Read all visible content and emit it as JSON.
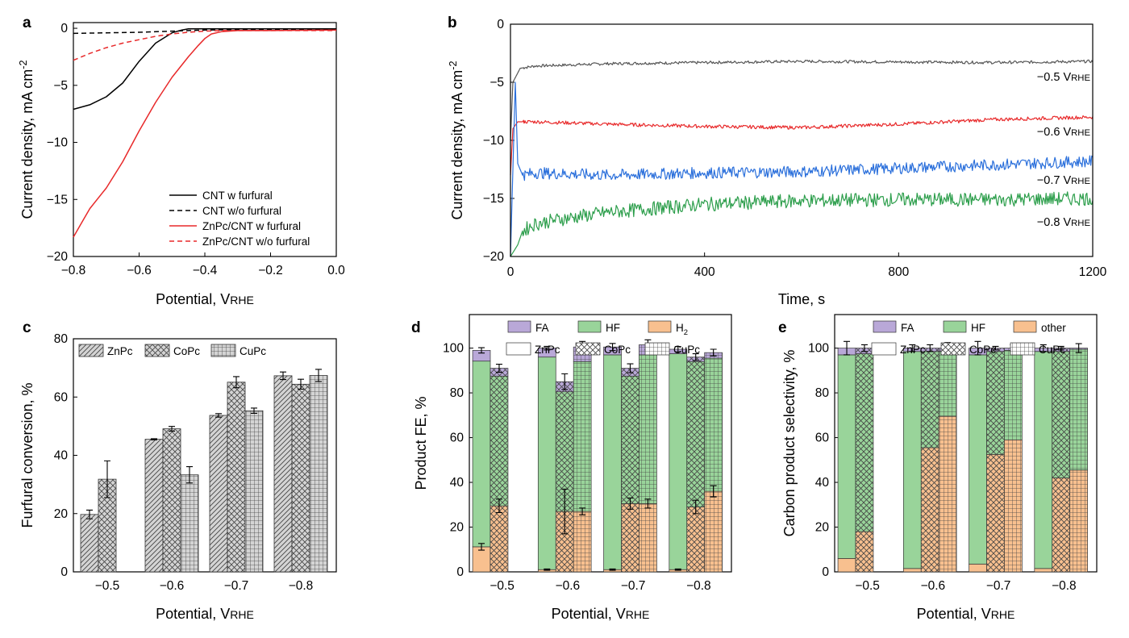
{
  "colors": {
    "black": "#000000",
    "red": "#e8292a",
    "blue": "#2a6fdb",
    "green": "#2c9e4b",
    "gray": "#555555",
    "FA": "#b9a8d8",
    "HF": "#99d49a",
    "H2": "#f8c08f",
    "bar_gray": "#d0d0d0"
  },
  "chart_data": [
    {
      "panel": "a",
      "type": "line",
      "xlabel": "Potential, VRHE",
      "ylabel": "Current density, mA cm-2",
      "xlim": [
        -0.8,
        0.0
      ],
      "ylim": [
        -20,
        0.5
      ],
      "xticks": [
        "-0.8",
        "-0.6",
        "-0.4",
        "-0.2",
        "0.0"
      ],
      "yticks": [
        "0",
        "-5",
        "-10",
        "-15",
        "-20"
      ],
      "legend_position": "bottom-right",
      "series": [
        {
          "name": "CNT w furfural",
          "color": "#000000",
          "dash": "solid",
          "x": [
            -0.8,
            -0.75,
            -0.7,
            -0.65,
            -0.6,
            -0.55,
            -0.5,
            -0.47,
            -0.45,
            -0.4,
            -0.3,
            -0.2,
            0.0
          ],
          "y": [
            -7.1,
            -6.7,
            -6.0,
            -4.8,
            -2.9,
            -1.3,
            -0.4,
            -0.15,
            -0.05,
            -0.05,
            -0.05,
            -0.05,
            -0.05
          ]
        },
        {
          "name": "CNT w/o furfural",
          "color": "#000000",
          "dash": "dashed",
          "x": [
            -0.8,
            -0.6,
            -0.5,
            -0.4,
            -0.2,
            0.0
          ],
          "y": [
            -0.45,
            -0.35,
            -0.25,
            -0.15,
            -0.1,
            -0.1
          ]
        },
        {
          "name": "ZnPc/CNT w furfural",
          "color": "#e8292a",
          "dash": "solid",
          "x": [
            -0.8,
            -0.77,
            -0.75,
            -0.7,
            -0.65,
            -0.6,
            -0.55,
            -0.5,
            -0.45,
            -0.42,
            -0.4,
            -0.38,
            -0.35,
            -0.3,
            -0.2,
            0.0
          ],
          "y": [
            -18.3,
            -16.8,
            -15.8,
            -14.0,
            -11.7,
            -9.0,
            -6.5,
            -4.3,
            -2.5,
            -1.5,
            -0.9,
            -0.5,
            -0.3,
            -0.2,
            -0.2,
            -0.15
          ]
        },
        {
          "name": "ZnPc/CNT w/o furfural",
          "color": "#e8292a",
          "dash": "dashed",
          "x": [
            -0.8,
            -0.75,
            -0.7,
            -0.65,
            -0.6,
            -0.55,
            -0.5,
            -0.45,
            -0.4,
            -0.35,
            -0.3,
            -0.2,
            0.0
          ],
          "y": [
            -2.8,
            -2.2,
            -1.7,
            -1.3,
            -1.0,
            -0.7,
            -0.5,
            -0.35,
            -0.25,
            -0.2,
            -0.2,
            -0.2,
            -0.2
          ]
        }
      ]
    },
    {
      "panel": "b",
      "type": "line",
      "xlabel": "Time, s",
      "ylabel": "Current density, mA cm-2",
      "xlim": [
        0,
        1200
      ],
      "ylim": [
        -20,
        0
      ],
      "xticks": [
        "0",
        "400",
        "800",
        "1200"
      ],
      "yticks": [
        "0",
        "-5",
        "-10",
        "-15",
        "-20"
      ],
      "series": [
        {
          "name": "-0.5 VRHE",
          "color": "#555555",
          "noise": 0.12,
          "x": [
            0,
            5,
            20,
            50,
            200,
            400,
            600,
            800,
            1000,
            1200
          ],
          "y": [
            -10,
            -5,
            -3.8,
            -3.6,
            -3.4,
            -3.3,
            -3.2,
            -3.25,
            -3.3,
            -3.2
          ]
        },
        {
          "name": "-0.6 VRHE",
          "color": "#e8292a",
          "noise": 0.15,
          "x": [
            0,
            5,
            15,
            50,
            200,
            400,
            600,
            800,
            1000,
            1200
          ],
          "y": [
            -13,
            -9,
            -8.4,
            -8.4,
            -8.6,
            -8.8,
            -8.9,
            -8.6,
            -8.2,
            -8.0
          ]
        },
        {
          "name": "-0.7 VRHE",
          "color": "#2a6fdb",
          "noise": 0.5,
          "x": [
            0,
            10,
            15,
            25,
            50,
            200,
            400,
            600,
            800,
            1000,
            1200
          ],
          "y": [
            -20,
            -5,
            -12,
            -13,
            -12.8,
            -13.0,
            -12.8,
            -12.7,
            -12.4,
            -12.1,
            -11.8
          ]
        },
        {
          "name": "-0.8 VRHE",
          "color": "#2c9e4b",
          "noise": 0.6,
          "x": [
            0,
            15,
            25,
            50,
            100,
            200,
            400,
            600,
            800,
            1000,
            1200
          ],
          "y": [
            -20,
            -19,
            -17.8,
            -17.2,
            -16.8,
            -16.2,
            -15.5,
            -15.2,
            -15.1,
            -15.1,
            -15.0
          ]
        }
      ]
    },
    {
      "panel": "c",
      "type": "bar",
      "xlabel": "Potential, VRHE",
      "ylabel": "Furfural conversion, %",
      "ylim": [
        0,
        80
      ],
      "categories": [
        "-0.5",
        "-0.6",
        "-0.7",
        "-0.8"
      ],
      "yticks": [
        "0",
        "20",
        "40",
        "60",
        "80"
      ],
      "series": [
        {
          "name": "ZnPc",
          "values": [
            19.7,
            45.5,
            53.7,
            67.3
          ],
          "errors": [
            1.5,
            0.2,
            0.6,
            1.3
          ]
        },
        {
          "name": "CoPc",
          "values": [
            31.8,
            49.1,
            65.1,
            64.4
          ],
          "errors": [
            6.3,
            0.8,
            1.9,
            1.7
          ]
        },
        {
          "name": "CuPc",
          "values": [
            null,
            33.3,
            55.3,
            67.4
          ],
          "errors": [
            null,
            2.8,
            0.9,
            2.1
          ]
        }
      ]
    },
    {
      "panel": "d",
      "type": "bar",
      "stacked": true,
      "xlabel": "Potential, VRHE",
      "ylabel": "Product FE, %",
      "ylim": [
        0,
        115
      ],
      "categories": [
        "-0.5",
        "-0.6",
        "-0.7",
        "-0.8"
      ],
      "yticks": [
        "0",
        "20",
        "40",
        "60",
        "80",
        "100"
      ],
      "components": [
        "H2",
        "HF",
        "FA"
      ],
      "component_labels": [
        "H",
        "HF",
        "FA"
      ],
      "catalysts": [
        "ZnPc",
        "CoPc",
        "CuPc"
      ],
      "stacks": [
        [
          {
            "H2": 11.2,
            "HF": 83.0,
            "FA": 4.8,
            "eH2": 1.5,
            "eTot": 1.2
          },
          {
            "H2": 29.5,
            "HF": 58.0,
            "FA": 3.5,
            "eH2": 3.0,
            "eTot": 1.8
          },
          null
        ],
        [
          {
            "H2": 1.0,
            "HF": 95.0,
            "FA": 4.0,
            "eH2": 0.3,
            "eTot": 0.8
          },
          {
            "H2": 27.0,
            "HF": 53.5,
            "FA": 4.5,
            "eH2": 10.0,
            "eTot": 3.5
          },
          {
            "H2": 27.0,
            "HF": 67.0,
            "FA": 6.5,
            "eH2": 1.5,
            "eTot": 2.5
          }
        ],
        [
          {
            "H2": 1.0,
            "HF": 96.0,
            "FA": 3.5,
            "eH2": 0.3,
            "eTot": 1.6
          },
          {
            "H2": 30.5,
            "HF": 57.0,
            "FA": 3.5,
            "eH2": 2.5,
            "eTot": 2.0
          },
          {
            "H2": 30.5,
            "HF": 66.5,
            "FA": 4.5,
            "eH2": 2.0,
            "eTot": 2.2
          }
        ],
        [
          {
            "H2": 1.0,
            "HF": 96.5,
            "FA": 2.0,
            "eH2": 0.3,
            "eTot": 1.2
          },
          {
            "H2": 29.0,
            "HF": 65.0,
            "FA": 2.0,
            "eH2": 3.0,
            "eTot": 1.5
          },
          {
            "H2": 36.0,
            "HF": 59.5,
            "FA": 2.5,
            "eH2": 2.5,
            "eTot": 1.5
          }
        ]
      ]
    },
    {
      "panel": "e",
      "type": "bar",
      "stacked": true,
      "xlabel": "Potential, VRHE",
      "ylabel": "Carbon product selectivity, %",
      "ylim": [
        0,
        115
      ],
      "categories": [
        "-0.5",
        "-0.6",
        "-0.7",
        "-0.8"
      ],
      "yticks": [
        "0",
        "20",
        "40",
        "60",
        "80",
        "100"
      ],
      "components": [
        "H2",
        "HF",
        "FA"
      ],
      "component_labels": [
        "other",
        "HF",
        "FA"
      ],
      "catalysts": [
        "ZnPc",
        "CoPc",
        "CuPc"
      ],
      "stacks": [
        [
          {
            "H2": 6.0,
            "HF": 91.0,
            "FA": 3.0,
            "eH2": 0,
            "eTot": 3.0
          },
          {
            "H2": 18.0,
            "HF": 79.5,
            "FA": 2.5,
            "eH2": 0,
            "eTot": 1.5
          },
          null
        ],
        [
          {
            "H2": 1.5,
            "HF": 97.0,
            "FA": 1.5,
            "eH2": 0,
            "eTot": 1.5
          },
          {
            "H2": 55.5,
            "HF": 43.0,
            "FA": 1.5,
            "eH2": 0,
            "eTot": 1.5
          },
          {
            "H2": 69.5,
            "HF": 29.0,
            "FA": 1.5,
            "eH2": 0,
            "eTot": 2.5
          }
        ],
        [
          {
            "H2": 3.5,
            "HF": 93.5,
            "FA": 3.0,
            "eH2": 0,
            "eTot": 3.0
          },
          {
            "H2": 52.5,
            "HF": 46.0,
            "FA": 1.5,
            "eH2": 0,
            "eTot": 0.8
          },
          {
            "H2": 59.0,
            "HF": 40.0,
            "FA": 1.0,
            "eH2": 0,
            "eTot": 1.5
          }
        ],
        [
          {
            "H2": 1.5,
            "HF": 97.0,
            "FA": 1.5,
            "eH2": 0,
            "eTot": 1.5
          },
          {
            "H2": 42.0,
            "HF": 56.5,
            "FA": 1.5,
            "eH2": 0,
            "eTot": 0.8
          },
          {
            "H2": 45.5,
            "HF": 54.0,
            "FA": 0.5,
            "eH2": 0,
            "eTot": 2.0
          }
        ]
      ]
    }
  ],
  "panel_letters": [
    "a",
    "b",
    "c",
    "d",
    "e"
  ],
  "b_labels": [
    "-0.5 VRHE",
    "-0.6 VRHE",
    "-0.7 VRHE",
    "-0.8 VRHE"
  ]
}
